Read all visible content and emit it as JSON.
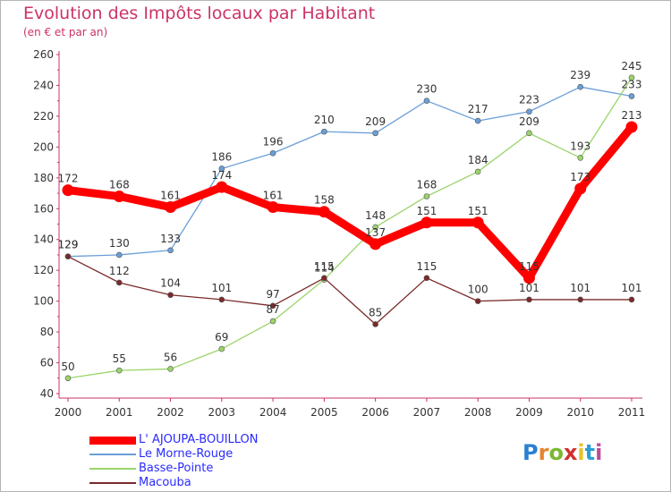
{
  "title": "Evolution des Impôts locaux par Habitant",
  "subtitle": "(en € et par an)",
  "logo": {
    "text": "Proxiti",
    "letter_colors": [
      "#2a7fd4",
      "#e8842a",
      "#7ab830",
      "#d03030",
      "#e8c22a",
      "#2a9fd4",
      "#c04a9a"
    ]
  },
  "chart_data": {
    "type": "line",
    "title": "Evolution des Impôts locaux par Habitant",
    "subtitle": "(en € et par an)",
    "x": [
      "2000",
      "2001",
      "2002",
      "2003",
      "2004",
      "2005",
      "2006",
      "2007",
      "2008",
      "2009",
      "2010",
      "2011"
    ],
    "ylim": [
      40,
      260
    ],
    "yticks": [
      40,
      60,
      80,
      100,
      120,
      140,
      160,
      180,
      200,
      220,
      240,
      260
    ],
    "grid": false,
    "legend_position": "bottom",
    "series": [
      {
        "name": "L' AJOUPA-BOUILLON",
        "color": "#ff0000",
        "values": [
          172,
          168,
          161,
          174,
          161,
          158,
          137,
          151,
          151,
          115,
          173,
          213
        ]
      },
      {
        "name": "Le Morne-Rouge",
        "color": "#6a9fd8",
        "values": [
          129,
          130,
          133,
          186,
          196,
          210,
          209,
          230,
          217,
          223,
          239,
          233
        ]
      },
      {
        "name": "Basse-Pointe",
        "color": "#9ad46a",
        "values": [
          50,
          55,
          56,
          69,
          87,
          114,
          148,
          168,
          184,
          209,
          193,
          245
        ]
      },
      {
        "name": "Macouba",
        "color": "#7a2a2a",
        "values": [
          129,
          112,
          104,
          101,
          97,
          115,
          85,
          115,
          100,
          101,
          101,
          101
        ]
      }
    ]
  }
}
